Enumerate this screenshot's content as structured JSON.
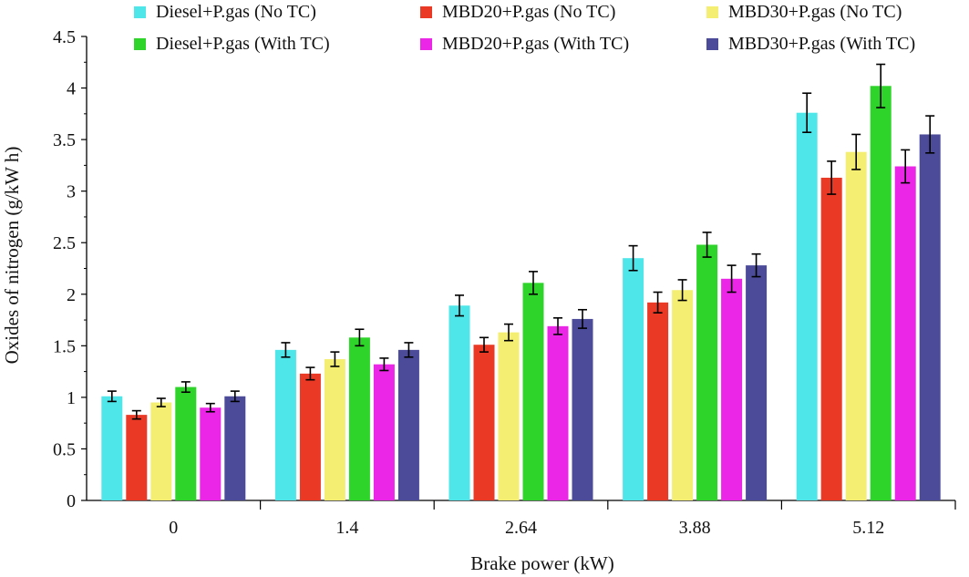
{
  "chart_data": {
    "type": "bar",
    "title": "",
    "xlabel": "Brake power (kW)",
    "ylabel": "Oxides of nitrogen (g/kW h)",
    "categories": [
      "0",
      "1.4",
      "2.64",
      "3.88",
      "5.12"
    ],
    "ylim": [
      0,
      4.5
    ],
    "yticks": [
      "0",
      "0.5",
      "1",
      "1.5",
      "2",
      "2.5",
      "3",
      "3.5",
      "4",
      "4.5"
    ],
    "error_bars": true,
    "grid": false,
    "legend_position": "top",
    "series": [
      {
        "name": "Diesel+P.gas (No TC)",
        "color": "#4fe6ea",
        "values": [
          1.01,
          1.46,
          1.89,
          2.35,
          3.76
        ],
        "errors": [
          0.05,
          0.07,
          0.1,
          0.12,
          0.19
        ]
      },
      {
        "name": "MBD20+P.gas (No TC)",
        "color": "#ea3a26",
        "values": [
          0.83,
          1.23,
          1.51,
          1.92,
          3.13
        ],
        "errors": [
          0.04,
          0.06,
          0.07,
          0.1,
          0.16
        ]
      },
      {
        "name": "MBD30+P.gas (No TC)",
        "color": "#f4ee72",
        "values": [
          0.95,
          1.37,
          1.63,
          2.04,
          3.38
        ],
        "errors": [
          0.04,
          0.07,
          0.08,
          0.1,
          0.17
        ]
      },
      {
        "name": "Diesel+P.gas (With TC)",
        "color": "#2fd42a",
        "values": [
          1.1,
          1.58,
          2.11,
          2.48,
          4.02
        ],
        "errors": [
          0.05,
          0.08,
          0.11,
          0.12,
          0.21
        ]
      },
      {
        "name": "MBD20+P.gas (With TC)",
        "color": "#ec26e6",
        "values": [
          0.9,
          1.32,
          1.69,
          2.15,
          3.24
        ],
        "errors": [
          0.04,
          0.06,
          0.08,
          0.13,
          0.16
        ]
      },
      {
        "name": "MBD30+P.gas (With TC)",
        "color": "#4b4b9a",
        "values": [
          1.01,
          1.46,
          1.76,
          2.28,
          3.55
        ],
        "errors": [
          0.05,
          0.07,
          0.09,
          0.11,
          0.18
        ]
      }
    ]
  }
}
